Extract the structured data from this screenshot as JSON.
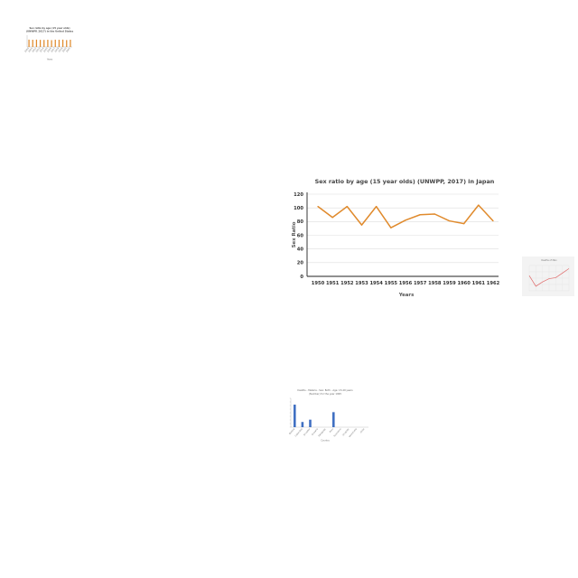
{
  "chart_data": [
    {
      "id": "main",
      "type": "line",
      "title": "Sex ratio by age (15 year olds) (UNWPP, 2017) in Japan",
      "xlabel": "Years",
      "ylabel": "Sex Ratio",
      "categories": [
        "1950",
        "1951",
        "1952",
        "1953",
        "1954",
        "1955",
        "1956",
        "1957",
        "1958",
        "1959",
        "1960",
        "1961",
        "1962"
      ],
      "series": [
        {
          "values": [
            102,
            86,
            102,
            75,
            102,
            71,
            82,
            90,
            91,
            81,
            77,
            104,
            81
          ],
          "color": "#e08a2c"
        }
      ],
      "ylim": [
        0,
        120
      ],
      "yticks": [
        0,
        20,
        40,
        60,
        80,
        100,
        120
      ],
      "grid": true
    },
    {
      "id": "small-top-left",
      "type": "bar",
      "title": "Sex ratio by age (15 year olds)",
      "subtitle": "(UNWPP, 2017) in the United States",
      "xlabel": "Years",
      "ylabel": "",
      "categories": [
        "1950",
        "1951",
        "1952",
        "1953",
        "1954",
        "1955",
        "1956",
        "1957",
        "1958",
        "1959",
        "1960",
        "1961"
      ],
      "series": [
        {
          "values": [
            100,
            98,
            100,
            97,
            96,
            98,
            93,
            99,
            98,
            100,
            94,
            99
          ],
          "color": "#e08a2c"
        }
      ],
      "ylim": [
        0,
        160
      ]
    },
    {
      "id": "small-right",
      "type": "line",
      "title": "Deaths of Men",
      "categories": [
        "1",
        "2",
        "3",
        "4",
        "5",
        "6",
        "7"
      ],
      "series": [
        {
          "values": [
            60,
            18,
            35,
            48,
            52,
            70,
            88
          ],
          "color": "#e06a6a"
        }
      ],
      "ylim": [
        0,
        100
      ]
    },
    {
      "id": "small-bottom",
      "type": "bar",
      "title": "Deaths - Malaria - Sex: Both - Age: 15-49 years",
      "subtitle": "(Number) for the year 1995",
      "xlabel": "Country",
      "ylabel": "",
      "categories": [
        "Bolivia",
        "Colombia",
        "Ecuador",
        "Guyana",
        "Paraguay",
        "Peru",
        "Suriname",
        "Uruguay",
        "Venezuela",
        "Chile"
      ],
      "series": [
        {
          "values": [
            78,
            18,
            26,
            0,
            0,
            52,
            0,
            0,
            0,
            0
          ],
          "color": "#3f6fc2"
        }
      ],
      "ylim": [
        0,
        100
      ]
    }
  ]
}
